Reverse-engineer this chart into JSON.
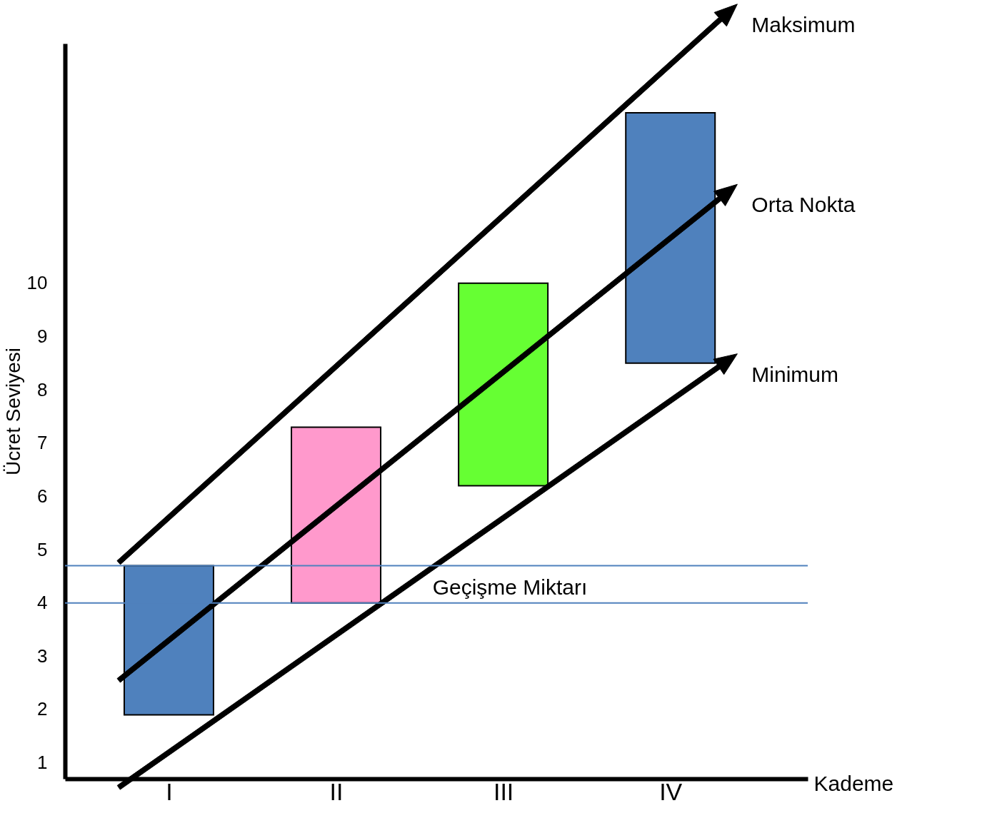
{
  "chart_data": {
    "type": "bar",
    "categories": [
      "I",
      "II",
      "III",
      "IV"
    ],
    "base": [
      1.9,
      4.0,
      6.2,
      8.5
    ],
    "values": [
      2.8,
      3.3,
      3.8,
      4.7
    ],
    "colors": [
      "#4f81bd",
      "#ff99cc",
      "#66ff33",
      "#4f81bd"
    ],
    "ylim": [
      0.7,
      14.5
    ],
    "yticks": [
      1,
      2,
      3,
      4,
      5,
      6,
      7,
      8,
      9,
      10
    ],
    "xlabel": "Kademe",
    "ylabel": "Ücret Seviyesi",
    "grid": false,
    "annotations": [
      "Maksimum",
      "Orta Nokta",
      "Minimum"
    ],
    "ref_lines": [
      {
        "axis": "y",
        "value": 4.7,
        "color": "#4f81bd"
      },
      {
        "axis": "y",
        "value": 4.0,
        "label": "Geçişme Miktarı",
        "color": "#4f81bd"
      }
    ]
  }
}
